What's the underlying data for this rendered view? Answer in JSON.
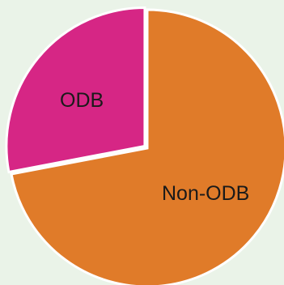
{
  "chart_data": {
    "type": "pie",
    "title": "",
    "slices": [
      {
        "label": "Non-ODB",
        "value": 72,
        "color": "#e07b29"
      },
      {
        "label": "ODB",
        "value": 28,
        "color": "#d62685"
      }
    ],
    "exploded": "ODB",
    "legend": "none"
  }
}
